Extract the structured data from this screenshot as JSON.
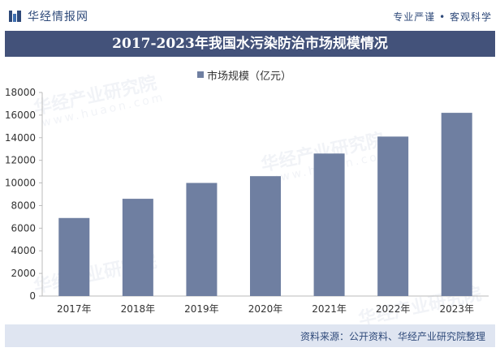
{
  "header": {
    "brand": "华经情报网",
    "slogan": "专业严谨 • 客观科学"
  },
  "watermark": {
    "text": "华经产业研究院",
    "sub": "www.huaon.com"
  },
  "footer": {
    "source": "资料来源：公开资料、华经产业研究院整理"
  },
  "colors": {
    "bar": "#6f7fa1",
    "title_band": "#43527a",
    "footer_band": "#dfe5f1",
    "brand_text": "#2f4a7a"
  },
  "chart_data": {
    "type": "bar",
    "title": "2017-2023年我国水污染防治市场规模情况",
    "categories": [
      "2017年",
      "2018年",
      "2019年",
      "2020年",
      "2021年",
      "2022年",
      "2023年"
    ],
    "series": [
      {
        "name": "市场规模（亿元）",
        "values": [
          6900,
          8600,
          10000,
          10600,
          12600,
          14100,
          16200
        ]
      }
    ],
    "y_ticks": [
      "0",
      "2000",
      "4000",
      "6000",
      "8000",
      "10000",
      "12000",
      "14000",
      "16000",
      "18000"
    ],
    "ylim": [
      0,
      18000
    ],
    "legend_position": "top",
    "grid": false
  }
}
